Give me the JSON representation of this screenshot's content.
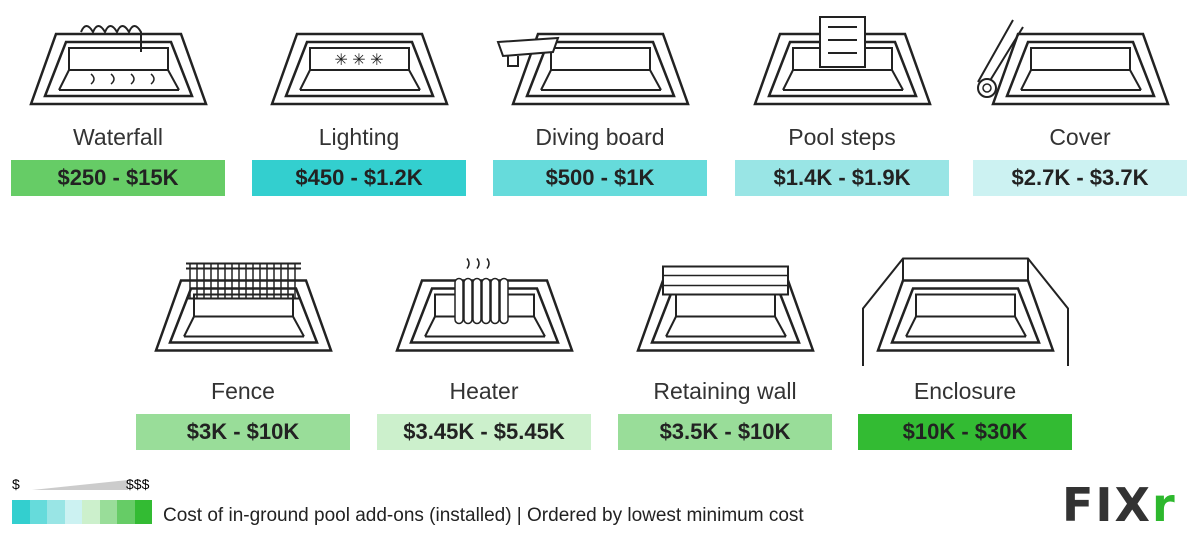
{
  "items": [
    {
      "label": "Waterfall",
      "price": "$250 - $15K",
      "color": "#66cc66",
      "icon": "waterfall-icon"
    },
    {
      "label": "Lighting",
      "price": "$450 - $1.2K",
      "color": "#33cfcf",
      "icon": "lighting-icon"
    },
    {
      "label": "Diving board",
      "price": "$500 - $1K",
      "color": "#66dbdb",
      "icon": "diving-board-icon"
    },
    {
      "label": "Pool steps",
      "price": "$1.4K - $1.9K",
      "color": "#99e5e5",
      "icon": "pool-steps-icon"
    },
    {
      "label": "Cover",
      "price": "$2.7K - $3.7K",
      "color": "#ccf2f2",
      "icon": "cover-icon"
    },
    {
      "label": "Fence",
      "price": "$3K - $10K",
      "color": "#99dd99",
      "icon": "fence-icon"
    },
    {
      "label": "Heater",
      "price": "$3.45K - $5.45K",
      "color": "#ccf0cc",
      "icon": "heater-icon"
    },
    {
      "label": "Retaining wall",
      "price": "$3.5K - $10K",
      "color": "#99dd99",
      "icon": "retaining-wall-icon"
    },
    {
      "label": "Enclosure",
      "price": "$10K - $30K",
      "color": "#33bb33",
      "icon": "enclosure-icon"
    }
  ],
  "legend": {
    "low": "$",
    "high": "$$$",
    "scale": [
      "#33cfcf",
      "#66dbdb",
      "#99e5e5",
      "#ccf2f2",
      "#ccf0cc",
      "#99dd99",
      "#66cc66",
      "#33bb33"
    ]
  },
  "caption": "Cost of in-ground pool add-ons (installed) | Ordered by lowest minimum cost",
  "logo": "FIXR"
}
